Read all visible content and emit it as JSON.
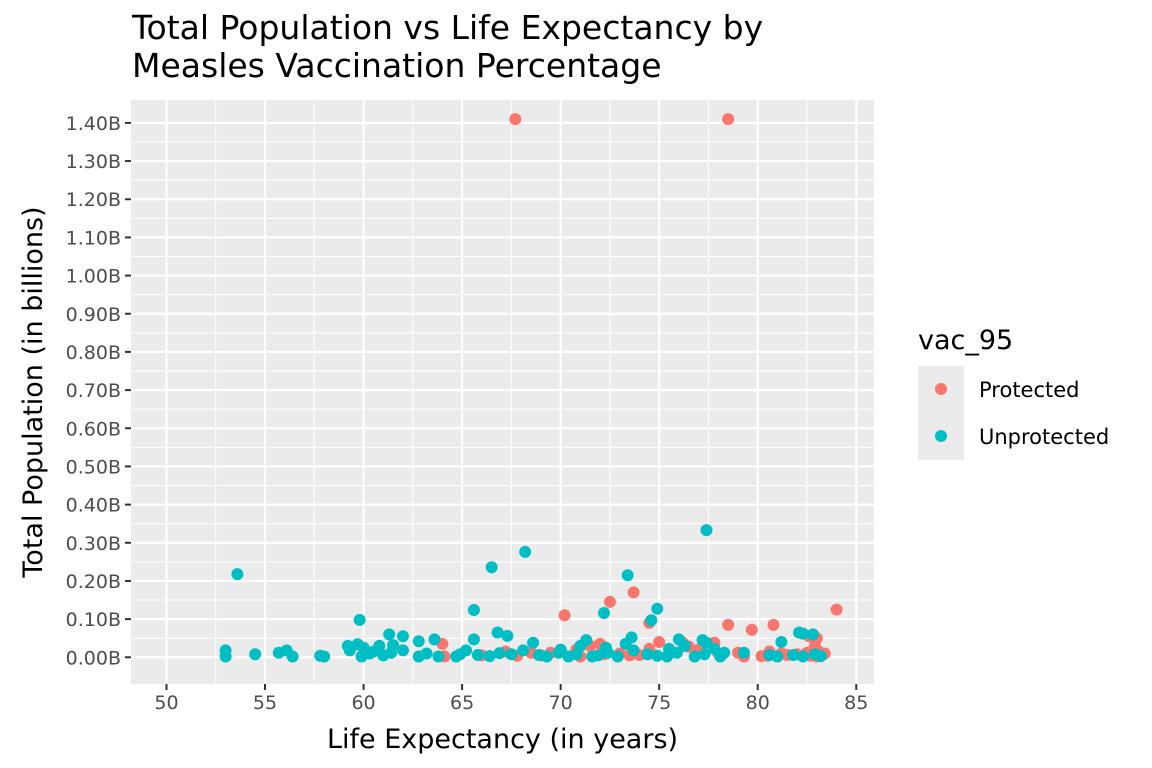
{
  "chart_data": {
    "type": "scatter",
    "title": "Total Population vs Life Expectancy by Measles Vaccination Percentage",
    "title_lines": [
      "Total Population vs Life Expectancy by",
      "Measles Vaccination Percentage"
    ],
    "xlabel": "Life Expectancy (in years)",
    "ylabel": "Total Population (in billions)",
    "xlim": [
      48.2,
      85.9
    ],
    "ylim": [
      -0.07,
      1.46
    ],
    "x_ticks": [
      50,
      55,
      60,
      65,
      70,
      75,
      80,
      85
    ],
    "x_tick_labels": [
      "50",
      "55",
      "60",
      "65",
      "70",
      "75",
      "80",
      "85"
    ],
    "y_ticks": [
      0,
      0.1,
      0.2,
      0.3,
      0.4,
      0.5,
      0.6,
      0.7,
      0.8,
      0.9,
      1.0,
      1.1,
      1.2,
      1.3,
      1.4
    ],
    "y_tick_labels": [
      "0.00B",
      "0.10B",
      "0.20B",
      "0.30B",
      "0.40B",
      "0.50B",
      "0.60B",
      "0.70B",
      "0.80B",
      "0.90B",
      "1.00B",
      "1.10B",
      "1.20B",
      "1.30B",
      "1.40B"
    ],
    "grid": true,
    "panel_background": "#ebebeb",
    "legend": {
      "title": "vac_95",
      "position": "right",
      "entries": [
        {
          "label": "Protected",
          "color": "#f8766d"
        },
        {
          "label": "Unprotected",
          "color": "#00bfc4"
        }
      ]
    },
    "series": [
      {
        "name": "Protected",
        "color": "#f8766d",
        "points": [
          [
            67.7,
            1.41
          ],
          [
            78.5,
            1.41
          ],
          [
            73.7,
            0.17
          ],
          [
            72.5,
            0.145
          ],
          [
            70.2,
            0.11
          ],
          [
            74.5,
            0.09
          ],
          [
            84.0,
            0.125
          ],
          [
            80.8,
            0.085
          ],
          [
            78.5,
            0.085
          ],
          [
            79.7,
            0.072
          ],
          [
            82.6,
            0.055
          ],
          [
            83.0,
            0.05
          ],
          [
            82.9,
            0.03
          ],
          [
            75.0,
            0.04
          ],
          [
            76.2,
            0.038
          ],
          [
            77.8,
            0.038
          ],
          [
            76.5,
            0.028
          ],
          [
            77.0,
            0.02
          ],
          [
            74.5,
            0.022
          ],
          [
            72.0,
            0.035
          ],
          [
            71.5,
            0.03
          ],
          [
            73.0,
            0.01
          ],
          [
            67.2,
            0.015
          ],
          [
            64.0,
            0.035
          ],
          [
            66.0,
            0.005
          ],
          [
            68.5,
            0.012
          ],
          [
            69.5,
            0.012
          ],
          [
            70.8,
            0.02
          ],
          [
            72.2,
            0.008
          ],
          [
            73.5,
            0.005
          ],
          [
            74.0,
            0.006
          ],
          [
            75.5,
            0.01
          ],
          [
            78.0,
            0.01
          ],
          [
            79.0,
            0.012
          ],
          [
            79.3,
            0.002
          ],
          [
            80.2,
            0.003
          ],
          [
            80.6,
            0.015
          ],
          [
            81.2,
            0.01
          ],
          [
            81.5,
            0.006
          ],
          [
            82.0,
            0.008
          ],
          [
            82.5,
            0.012
          ],
          [
            83.1,
            0.015
          ],
          [
            83.4,
            0.01
          ],
          [
            82.7,
            0.004
          ],
          [
            83.0,
            0.002
          ],
          [
            80.5,
            0.004
          ],
          [
            64.1,
            0.002
          ],
          [
            67.8,
            0.004
          ],
          [
            71.0,
            0.002
          ],
          [
            69.0,
            0.005
          ]
        ]
      },
      {
        "name": "Unprotected",
        "color": "#00bfc4",
        "points": [
          [
            77.4,
            0.333
          ],
          [
            68.2,
            0.276
          ],
          [
            66.5,
            0.236
          ],
          [
            53.6,
            0.218
          ],
          [
            73.4,
            0.215
          ],
          [
            65.6,
            0.124
          ],
          [
            74.9,
            0.127
          ],
          [
            72.2,
            0.116
          ],
          [
            74.6,
            0.097
          ],
          [
            59.8,
            0.098
          ],
          [
            66.8,
            0.065
          ],
          [
            67.3,
            0.056
          ],
          [
            61.3,
            0.06
          ],
          [
            62.0,
            0.055
          ],
          [
            63.6,
            0.047
          ],
          [
            65.6,
            0.047
          ],
          [
            71.3,
            0.045
          ],
          [
            73.6,
            0.052
          ],
          [
            76.0,
            0.047
          ],
          [
            77.2,
            0.045
          ],
          [
            77.4,
            0.038
          ],
          [
            81.2,
            0.04
          ],
          [
            82.1,
            0.065
          ],
          [
            82.3,
            0.062
          ],
          [
            82.8,
            0.06
          ],
          [
            59.2,
            0.03
          ],
          [
            59.7,
            0.034
          ],
          [
            60.0,
            0.025
          ],
          [
            60.8,
            0.03
          ],
          [
            61.5,
            0.032
          ],
          [
            62.8,
            0.042
          ],
          [
            68.6,
            0.038
          ],
          [
            70.0,
            0.02
          ],
          [
            71.0,
            0.03
          ],
          [
            72.3,
            0.025
          ],
          [
            73.3,
            0.035
          ],
          [
            75.5,
            0.022
          ],
          [
            76.3,
            0.03
          ],
          [
            77.8,
            0.022
          ],
          [
            78.3,
            0.012
          ],
          [
            53.0,
            0.018
          ],
          [
            53.0,
            0.002
          ],
          [
            54.5,
            0.008
          ],
          [
            55.7,
            0.012
          ],
          [
            56.1,
            0.018
          ],
          [
            56.4,
            0.002
          ],
          [
            58.0,
            0.002
          ],
          [
            59.3,
            0.018
          ],
          [
            59.9,
            0.002
          ],
          [
            60.3,
            0.01
          ],
          [
            61.0,
            0.005
          ],
          [
            61.4,
            0.012
          ],
          [
            62.0,
            0.018
          ],
          [
            62.8,
            0.002
          ],
          [
            63.2,
            0.01
          ],
          [
            63.8,
            0.002
          ],
          [
            64.7,
            0.002
          ],
          [
            65.2,
            0.018
          ],
          [
            65.8,
            0.006
          ],
          [
            66.4,
            0.003
          ],
          [
            67.5,
            0.008
          ],
          [
            68.1,
            0.018
          ],
          [
            68.9,
            0.006
          ],
          [
            69.9,
            0.012
          ],
          [
            70.4,
            0.002
          ],
          [
            70.8,
            0.008
          ],
          [
            71.6,
            0.002
          ],
          [
            72.4,
            0.012
          ],
          [
            72.9,
            0.002
          ],
          [
            73.7,
            0.018
          ],
          [
            74.4,
            0.008
          ],
          [
            75.4,
            0.002
          ],
          [
            75.9,
            0.012
          ],
          [
            76.8,
            0.002
          ],
          [
            77.3,
            0.008
          ],
          [
            78.1,
            0.002
          ],
          [
            79.3,
            0.012
          ],
          [
            81.0,
            0.002
          ],
          [
            81.8,
            0.006
          ],
          [
            82.3,
            0.002
          ],
          [
            82.9,
            0.008
          ],
          [
            57.8,
            0.004
          ],
          [
            64.9,
            0.008
          ],
          [
            69.3,
            0.002
          ],
          [
            74.9,
            0.004
          ],
          [
            80.6,
            0.006
          ],
          [
            83.2,
            0.003
          ],
          [
            60.5,
            0.015
          ],
          [
            66.9,
            0.011
          ],
          [
            71.9,
            0.005
          ]
        ]
      }
    ]
  }
}
